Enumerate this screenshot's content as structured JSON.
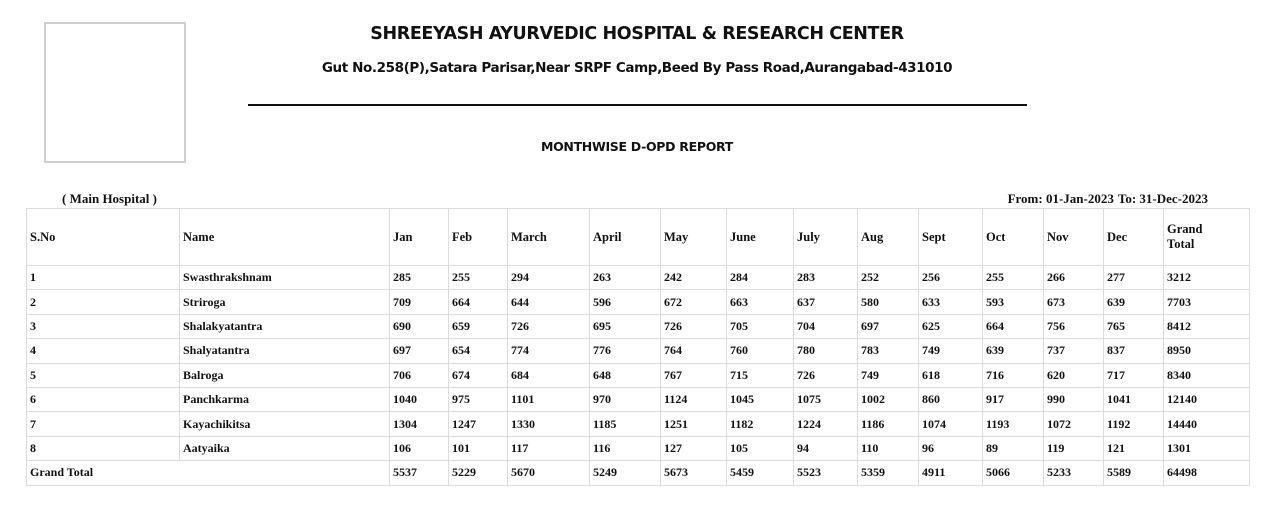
{
  "header": {
    "hospital_name": "SHREEYASH AYURVEDIC HOSPITAL & RESEARCH CENTER",
    "address": "Gut No.258(P),Satara Parisar,Near SRPF Camp,Beed By Pass Road,Aurangabad-431010",
    "report_title": "MONTHWISE D-OPD REPORT"
  },
  "filters": {
    "branch": "( Main Hospital )",
    "from_label": "From: 01-Jan-2023",
    "to_label": "To: 31-Dec-2023"
  },
  "table": {
    "columns": {
      "sno": "S.No",
      "name": "Name",
      "months": [
        "Jan",
        "Feb",
        "March",
        "April",
        "May",
        "June",
        "July",
        "Aug",
        "Sept",
        "Oct",
        "Nov",
        "Dec"
      ],
      "grand_line1": "Grand",
      "grand_line2": "Total"
    },
    "rows": [
      {
        "sno": "1",
        "name": "Swasthrakshnam",
        "values": [
          "285",
          "255",
          "294",
          "263",
          "242",
          "284",
          "283",
          "252",
          "256",
          "255",
          "266",
          "277"
        ],
        "total": "3212"
      },
      {
        "sno": "2",
        "name": "Striroga",
        "values": [
          "709",
          "664",
          "644",
          "596",
          "672",
          "663",
          "637",
          "580",
          "633",
          "593",
          "673",
          "639"
        ],
        "total": "7703"
      },
      {
        "sno": "3",
        "name": "Shalakyatantra",
        "values": [
          "690",
          "659",
          "726",
          "695",
          "726",
          "705",
          "704",
          "697",
          "625",
          "664",
          "756",
          "765"
        ],
        "total": "8412"
      },
      {
        "sno": "4",
        "name": "Shalyatantra",
        "values": [
          "697",
          "654",
          "774",
          "776",
          "764",
          "760",
          "780",
          "783",
          "749",
          "639",
          "737",
          "837"
        ],
        "total": "8950"
      },
      {
        "sno": "5",
        "name": "Balroga",
        "values": [
          "706",
          "674",
          "684",
          "648",
          "767",
          "715",
          "726",
          "749",
          "618",
          "716",
          "620",
          "717"
        ],
        "total": "8340"
      },
      {
        "sno": "6",
        "name": "Panchkarma",
        "values": [
          "1040",
          "975",
          "1101",
          "970",
          "1124",
          "1045",
          "1075",
          "1002",
          "860",
          "917",
          "990",
          "1041"
        ],
        "total": "12140"
      },
      {
        "sno": "7",
        "name": "Kayachikitsa",
        "values": [
          "1304",
          "1247",
          "1330",
          "1185",
          "1251",
          "1182",
          "1224",
          "1186",
          "1074",
          "1193",
          "1072",
          "1192"
        ],
        "total": "14440"
      },
      {
        "sno": "8",
        "name": "Aatyaika",
        "values": [
          "106",
          "101",
          "117",
          "116",
          "127",
          "105",
          "94",
          "110",
          "96",
          "89",
          "119",
          "121"
        ],
        "total": "1301"
      }
    ],
    "grand_total": {
      "label": "Grand Total",
      "values": [
        "5537",
        "5229",
        "5670",
        "5249",
        "5673",
        "5459",
        "5523",
        "5359",
        "4911",
        "5066",
        "5233",
        "5589"
      ],
      "total": "64498"
    }
  }
}
